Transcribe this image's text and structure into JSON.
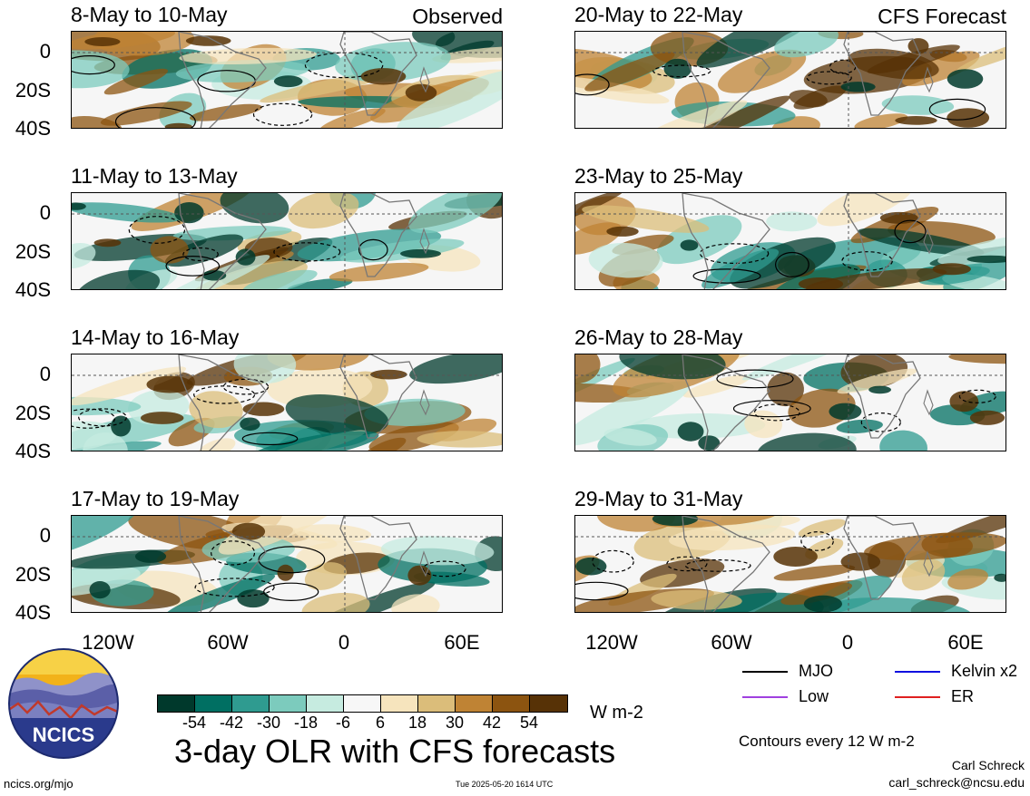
{
  "panels": [
    {
      "date": "8-May to 10-May",
      "tag": "Observed"
    },
    {
      "date": "20-May to 22-May",
      "tag": "CFS Forecast"
    },
    {
      "date": "11-May to 13-May",
      "tag": ""
    },
    {
      "date": "23-May to 25-May",
      "tag": ""
    },
    {
      "date": "14-May to 16-May",
      "tag": ""
    },
    {
      "date": "26-May to 28-May",
      "tag": ""
    },
    {
      "date": "17-May to 19-May",
      "tag": ""
    },
    {
      "date": "29-May to 31-May",
      "tag": ""
    }
  ],
  "y_ticks": [
    "0",
    "20S",
    "40S"
  ],
  "x_ticks": [
    "120W",
    "60W",
    "0",
    "60E"
  ],
  "colorbar": {
    "colors": [
      "#00392c",
      "#006f62",
      "#2f9b90",
      "#7ccbbd",
      "#c6ebe0",
      "#f7f7f7",
      "#f6e4bd",
      "#dbbd7a",
      "#bf8334",
      "#8c5410",
      "#573206"
    ],
    "ticks": [
      "-54",
      "-42",
      "-30",
      "-18",
      "-6",
      "6",
      "18",
      "30",
      "42",
      "54"
    ],
    "units": "W m-2"
  },
  "title": "3-day OLR with CFS forecasts",
  "legend": [
    {
      "label": "MJO",
      "color": "#000000"
    },
    {
      "label": "Kelvin x2",
      "color": "#1010e0"
    },
    {
      "label": "Low",
      "color": "#a040e0"
    },
    {
      "label": "ER",
      "color": "#e02020"
    }
  ],
  "contour_note": "Contours every 12 W m-2",
  "credit": {
    "name": "Carl Schreck",
    "email": "carl_schreck@ncsu.edu"
  },
  "footer": {
    "site": "ncics.org/mjo",
    "timestamp": "Tue 2025-05-20 1614 UTC"
  },
  "logo": {
    "text": "NCICS"
  }
}
